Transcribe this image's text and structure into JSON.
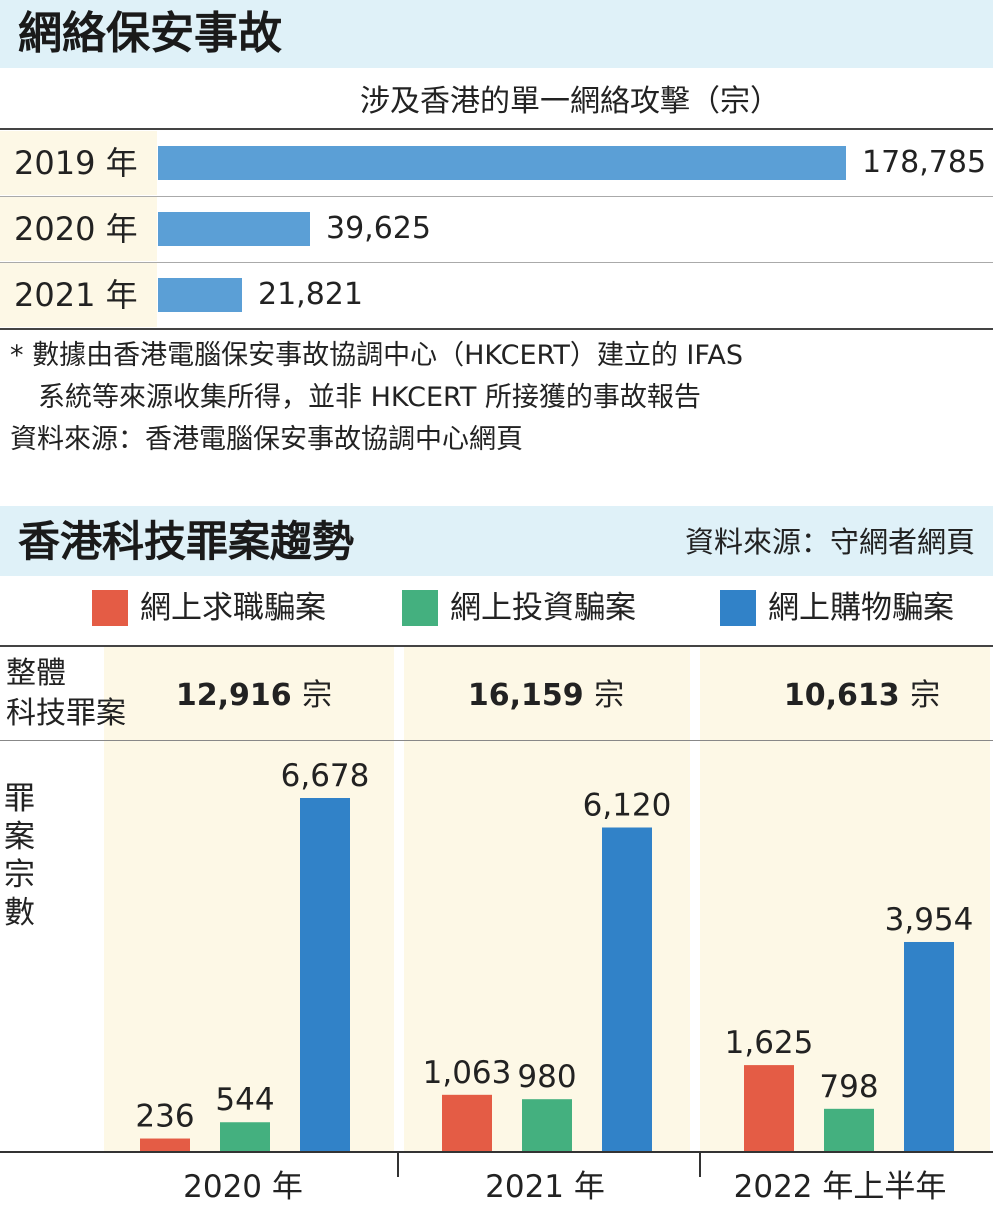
{
  "section1": {
    "title": "網絡保安事故",
    "subtitle": "涉及香港的單一網絡攻擊（宗）",
    "rows": [
      {
        "year": "2019 年",
        "value": 178785,
        "label": "178,785"
      },
      {
        "year": "2020 年",
        "value": 39625,
        "label": "39,625"
      },
      {
        "year": "2021 年",
        "value": 21821,
        "label": "21,821"
      }
    ],
    "note_line1": "* 數據由香港電腦保安事故協調中心（HKCERT）建立的 IFAS",
    "note_line2": "系統等來源收集所得，並非 HKCERT 所接獲的事故報告",
    "source": "資料來源：香港電腦保安事故協調中心網頁"
  },
  "section2": {
    "title": "香港科技罪案趨勢",
    "source": "資料來源：守網者網頁",
    "legend": [
      "網上求職騙案",
      "網上投資騙案",
      "網上購物騙案"
    ],
    "colors": [
      "#e45c45",
      "#44b07f",
      "#3182c8"
    ],
    "total_label_line1": "整體",
    "total_label_line2": "科技罪案",
    "totals": [
      {
        "num": "12,916",
        "unit": "宗"
      },
      {
        "num": "16,159",
        "unit": "宗"
      },
      {
        "num": "10,613",
        "unit": "宗"
      }
    ],
    "ylabel": "罪案宗數"
  },
  "chart_data": [
    {
      "type": "bar",
      "orientation": "horizontal",
      "title": "網絡保安事故",
      "subtitle": "涉及香港的單一網絡攻擊（宗）",
      "categories": [
        "2019 年",
        "2020 年",
        "2021 年"
      ],
      "values": [
        178785,
        39625,
        21821
      ]
    },
    {
      "type": "bar",
      "title": "香港科技罪案趨勢",
      "ylabel": "罪案宗數",
      "categories": [
        "2020 年",
        "2021 年",
        "2022 年上半年"
      ],
      "series": [
        {
          "name": "網上求職騙案",
          "values": [
            236,
            1063,
            1625
          ],
          "labels": [
            "236",
            "1,063",
            "1,625"
          ]
        },
        {
          "name": "網上投資騙案",
          "values": [
            544,
            980,
            798
          ],
          "labels": [
            "544",
            "980",
            "798"
          ]
        },
        {
          "name": "網上購物騙案",
          "values": [
            6678,
            6120,
            3954
          ],
          "labels": [
            "6,678",
            "6,120",
            "3,954"
          ]
        }
      ],
      "totals": [
        12916,
        16159,
        10613
      ],
      "grid": false,
      "legend": "top"
    }
  ]
}
